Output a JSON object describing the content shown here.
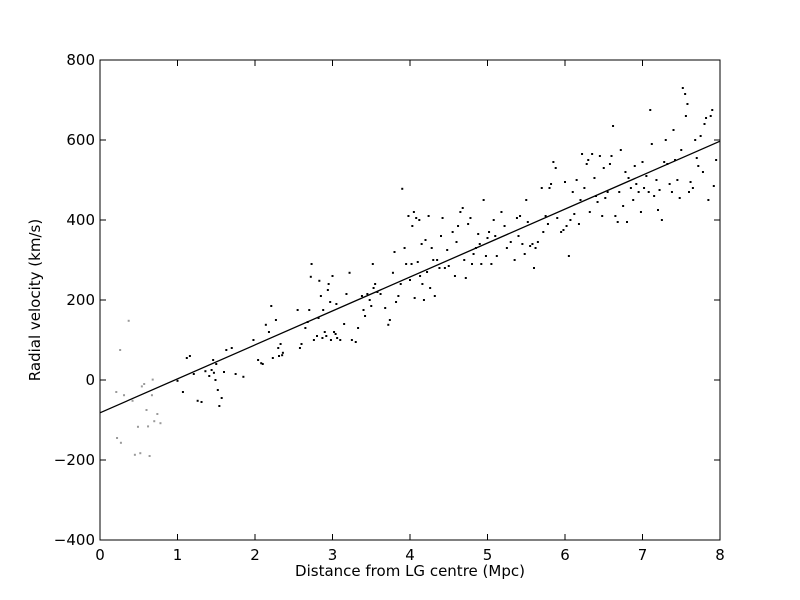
{
  "chart_data": {
    "type": "scatter",
    "title": "",
    "xlabel": "Distance from LG centre (Mpc)",
    "ylabel": "Radial velocity (km/s)",
    "xlim": [
      0,
      8
    ],
    "ylim": [
      -400,
      800
    ],
    "xticks": [
      0,
      1,
      2,
      3,
      4,
      5,
      6,
      7,
      8
    ],
    "yticks": [
      -400,
      -200,
      0,
      200,
      400,
      600,
      800
    ],
    "xtick_labels": [
      "0",
      "1",
      "2",
      "3",
      "4",
      "5",
      "6",
      "7",
      "8"
    ],
    "ytick_labels": [
      "−400",
      "−200",
      "0",
      "200",
      "400",
      "600",
      "800"
    ],
    "grid": false,
    "legend": "none",
    "colors": {
      "main_points": "#000000",
      "grey_points": "#9a9a9a",
      "fit_line": "#000000",
      "axes": "#000000"
    },
    "fit_line": {
      "x": [
        0,
        8
      ],
      "y": [
        -82,
        597
      ]
    },
    "series": [
      {
        "style": "grey",
        "points": [
          [
            0.21,
            -30
          ],
          [
            0.22,
            -145
          ],
          [
            0.26,
            75
          ],
          [
            0.27,
            -157
          ],
          [
            0.31,
            -38
          ],
          [
            0.37,
            148
          ],
          [
            0.42,
            -52
          ],
          [
            0.45,
            -187
          ],
          [
            0.49,
            -117
          ],
          [
            0.52,
            -183
          ],
          [
            0.54,
            -16
          ],
          [
            0.57,
            -10
          ],
          [
            0.6,
            -75
          ],
          [
            0.62,
            -116
          ],
          [
            0.64,
            -190
          ],
          [
            0.67,
            -38
          ],
          [
            0.68,
            1
          ],
          [
            0.7,
            -103
          ],
          [
            0.74,
            -85
          ],
          [
            0.78,
            -108
          ]
        ]
      },
      {
        "style": "black",
        "points": [
          [
            1.0,
            -2
          ],
          [
            1.07,
            -30
          ],
          [
            1.12,
            55
          ],
          [
            1.16,
            60
          ],
          [
            1.21,
            15
          ],
          [
            1.26,
            -52
          ],
          [
            1.31,
            -55
          ],
          [
            1.36,
            22
          ],
          [
            1.41,
            10
          ],
          [
            1.44,
            25
          ],
          [
            1.46,
            50
          ],
          [
            1.47,
            18
          ],
          [
            1.49,
            0
          ],
          [
            1.5,
            40
          ],
          [
            1.52,
            -25
          ],
          [
            1.54,
            -65
          ],
          [
            1.57,
            -45
          ],
          [
            1.6,
            20
          ],
          [
            1.63,
            75
          ],
          [
            1.7,
            80
          ],
          [
            1.75,
            15
          ],
          [
            1.85,
            8
          ],
          [
            1.98,
            100
          ],
          [
            2.04,
            50
          ],
          [
            2.08,
            42
          ],
          [
            2.1,
            40
          ],
          [
            2.14,
            138
          ],
          [
            2.18,
            120
          ],
          [
            2.21,
            185
          ],
          [
            2.23,
            55
          ],
          [
            2.27,
            150
          ],
          [
            2.3,
            80
          ],
          [
            2.31,
            60
          ],
          [
            2.33,
            90
          ],
          [
            2.35,
            62
          ],
          [
            2.36,
            68
          ],
          [
            2.55,
            175
          ],
          [
            2.58,
            80
          ],
          [
            2.6,
            90
          ],
          [
            2.65,
            130
          ],
          [
            2.68,
            145
          ],
          [
            2.7,
            175
          ],
          [
            2.72,
            258
          ],
          [
            2.73,
            290
          ],
          [
            2.76,
            100
          ],
          [
            2.8,
            110
          ],
          [
            2.82,
            155
          ],
          [
            2.83,
            248
          ],
          [
            2.85,
            210
          ],
          [
            2.87,
            105
          ],
          [
            2.88,
            175
          ],
          [
            2.9,
            120
          ],
          [
            2.92,
            110
          ],
          [
            2.94,
            225
          ],
          [
            2.95,
            240
          ],
          [
            2.97,
            195
          ],
          [
            2.98,
            100
          ],
          [
            3.0,
            260
          ],
          [
            3.02,
            120
          ],
          [
            3.04,
            115
          ],
          [
            3.05,
            190
          ],
          [
            3.06,
            105
          ],
          [
            3.1,
            100
          ],
          [
            3.15,
            140
          ],
          [
            3.18,
            215
          ],
          [
            3.22,
            268
          ],
          [
            3.25,
            100
          ],
          [
            3.3,
            95
          ],
          [
            3.33,
            130
          ],
          [
            3.38,
            210
          ],
          [
            3.4,
            175
          ],
          [
            3.42,
            160
          ],
          [
            3.45,
            215
          ],
          [
            3.48,
            200
          ],
          [
            3.5,
            185
          ],
          [
            3.52,
            290
          ],
          [
            3.53,
            230
          ],
          [
            3.55,
            240
          ],
          [
            3.58,
            220
          ],
          [
            3.62,
            215
          ],
          [
            3.68,
            180
          ],
          [
            3.72,
            138
          ],
          [
            3.74,
            150
          ],
          [
            3.78,
            268
          ],
          [
            3.8,
            320
          ],
          [
            3.82,
            195
          ],
          [
            3.85,
            210
          ],
          [
            3.88,
            240
          ],
          [
            3.9,
            478
          ],
          [
            3.93,
            330
          ],
          [
            3.95,
            290
          ],
          [
            3.98,
            410
          ],
          [
            4.0,
            250
          ],
          [
            4.02,
            290
          ],
          [
            4.03,
            385
          ],
          [
            4.05,
            420
          ],
          [
            4.06,
            205
          ],
          [
            4.08,
            405
          ],
          [
            4.1,
            295
          ],
          [
            4.12,
            400
          ],
          [
            4.13,
            260
          ],
          [
            4.15,
            340
          ],
          [
            4.16,
            240
          ],
          [
            4.18,
            200
          ],
          [
            4.2,
            350
          ],
          [
            4.22,
            270
          ],
          [
            4.24,
            410
          ],
          [
            4.26,
            230
          ],
          [
            4.28,
            330
          ],
          [
            4.3,
            300
          ],
          [
            4.32,
            210
          ],
          [
            4.35,
            300
          ],
          [
            4.38,
            280
          ],
          [
            4.4,
            360
          ],
          [
            4.42,
            405
          ],
          [
            4.45,
            280
          ],
          [
            4.48,
            325
          ],
          [
            4.5,
            285
          ],
          [
            4.55,
            370
          ],
          [
            4.58,
            260
          ],
          [
            4.6,
            345
          ],
          [
            4.62,
            385
          ],
          [
            4.65,
            420
          ],
          [
            4.68,
            430
          ],
          [
            4.7,
            300
          ],
          [
            4.72,
            255
          ],
          [
            4.75,
            390
          ],
          [
            4.78,
            405
          ],
          [
            4.8,
            290
          ],
          [
            4.82,
            315
          ],
          [
            4.85,
            330
          ],
          [
            4.88,
            365
          ],
          [
            4.9,
            340
          ],
          [
            4.92,
            290
          ],
          [
            4.95,
            450
          ],
          [
            4.98,
            310
          ],
          [
            5.0,
            355
          ],
          [
            5.02,
            370
          ],
          [
            5.05,
            290
          ],
          [
            5.08,
            400
          ],
          [
            5.1,
            360
          ],
          [
            5.12,
            310
          ],
          [
            5.18,
            420
          ],
          [
            5.22,
            385
          ],
          [
            5.25,
            330
          ],
          [
            5.3,
            345
          ],
          [
            5.35,
            300
          ],
          [
            5.38,
            405
          ],
          [
            5.4,
            360
          ],
          [
            5.42,
            410
          ],
          [
            5.45,
            340
          ],
          [
            5.48,
            315
          ],
          [
            5.5,
            450
          ],
          [
            5.52,
            395
          ],
          [
            5.55,
            335
          ],
          [
            5.58,
            340
          ],
          [
            5.6,
            280
          ],
          [
            5.62,
            330
          ],
          [
            5.65,
            345
          ],
          [
            5.7,
            480
          ],
          [
            5.72,
            370
          ],
          [
            5.75,
            410
          ],
          [
            5.78,
            390
          ],
          [
            5.8,
            480
          ],
          [
            5.82,
            490
          ],
          [
            5.85,
            545
          ],
          [
            5.88,
            530
          ],
          [
            5.9,
            405
          ],
          [
            5.95,
            370
          ],
          [
            5.98,
            375
          ],
          [
            6.0,
            495
          ],
          [
            6.02,
            385
          ],
          [
            6.05,
            310
          ],
          [
            6.07,
            400
          ],
          [
            6.1,
            470
          ],
          [
            6.12,
            415
          ],
          [
            6.15,
            500
          ],
          [
            6.18,
            390
          ],
          [
            6.2,
            450
          ],
          [
            6.22,
            565
          ],
          [
            6.25,
            480
          ],
          [
            6.28,
            540
          ],
          [
            6.3,
            550
          ],
          [
            6.32,
            420
          ],
          [
            6.35,
            565
          ],
          [
            6.38,
            505
          ],
          [
            6.4,
            460
          ],
          [
            6.42,
            445
          ],
          [
            6.45,
            560
          ],
          [
            6.48,
            410
          ],
          [
            6.5,
            530
          ],
          [
            6.52,
            455
          ],
          [
            6.55,
            470
          ],
          [
            6.58,
            540
          ],
          [
            6.6,
            560
          ],
          [
            6.62,
            635
          ],
          [
            6.65,
            410
          ],
          [
            6.68,
            395
          ],
          [
            6.7,
            470
          ],
          [
            6.72,
            575
          ],
          [
            6.75,
            435
          ],
          [
            6.78,
            520
          ],
          [
            6.8,
            395
          ],
          [
            6.82,
            505
          ],
          [
            6.85,
            480
          ],
          [
            6.88,
            450
          ],
          [
            6.9,
            535
          ],
          [
            6.92,
            490
          ],
          [
            6.95,
            470
          ],
          [
            6.98,
            420
          ],
          [
            7.0,
            545
          ],
          [
            7.02,
            480
          ],
          [
            7.05,
            510
          ],
          [
            7.08,
            470
          ],
          [
            7.1,
            675
          ],
          [
            7.12,
            590
          ],
          [
            7.15,
            460
          ],
          [
            7.18,
            500
          ],
          [
            7.2,
            425
          ],
          [
            7.22,
            475
          ],
          [
            7.25,
            400
          ],
          [
            7.28,
            545
          ],
          [
            7.3,
            600
          ],
          [
            7.32,
            540
          ],
          [
            7.35,
            490
          ],
          [
            7.38,
            470
          ],
          [
            7.4,
            625
          ],
          [
            7.42,
            550
          ],
          [
            7.45,
            500
          ],
          [
            7.48,
            455
          ],
          [
            7.5,
            575
          ],
          [
            7.52,
            730
          ],
          [
            7.55,
            715
          ],
          [
            7.56,
            660
          ],
          [
            7.58,
            690
          ],
          [
            7.6,
            470
          ],
          [
            7.62,
            495
          ],
          [
            7.65,
            480
          ],
          [
            7.68,
            600
          ],
          [
            7.7,
            555
          ],
          [
            7.72,
            535
          ],
          [
            7.75,
            610
          ],
          [
            7.78,
            520
          ],
          [
            7.8,
            640
          ],
          [
            7.82,
            655
          ],
          [
            7.85,
            450
          ],
          [
            7.88,
            660
          ],
          [
            7.9,
            675
          ],
          [
            7.92,
            485
          ],
          [
            7.95,
            550
          ]
        ]
      }
    ]
  }
}
